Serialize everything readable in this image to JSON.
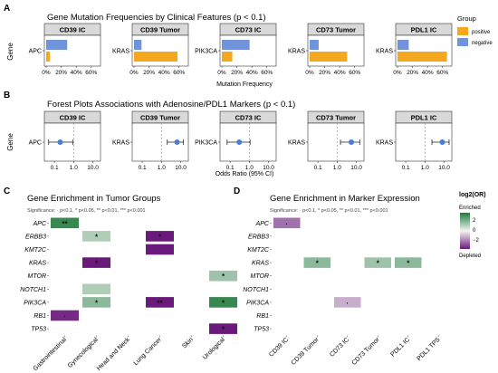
{
  "panels": {
    "a": {
      "letter": "A",
      "title": "Gene Mutation Frequencies by Clinical Features (p < 0.1)",
      "ylabel": "Gene",
      "xlabel": "Mutation Frequency",
      "legend": {
        "title": "Group",
        "items": [
          {
            "label": "positive",
            "color": "#f5a71d"
          },
          {
            "label": "negative",
            "color": "#6f94dc"
          }
        ]
      }
    },
    "b": {
      "letter": "B",
      "title": "Forest Plots Associations with Adenosine/PDL1 Markers (p < 0.1)",
      "ylabel": "Gene",
      "xlabel": "Odds Ratio (95% CI)"
    },
    "c": {
      "letter": "C",
      "title": "Gene Enrichment in Tumor Groups",
      "subtitle": "Significance: · p<0.1, * p<0.05, ** p<0.01, *** p<0.001"
    },
    "d": {
      "letter": "D",
      "title": "Gene Enrichment in Marker Expression",
      "subtitle": "Significance: · p<0.1, * p<0.05, ** p<0.01, *** p<0.001",
      "legend": {
        "title": "log2(OR)",
        "top_label": "Enriched",
        "bottom_label": "Depleted",
        "ticks": [
          "2",
          "0",
          "−2"
        ]
      }
    }
  },
  "chart_data": [
    {
      "type": "bar",
      "title": "Gene Mutation Frequencies by Clinical Features (p < 0.1)",
      "xlabel": "Mutation Frequency",
      "ylabel": "Gene",
      "x_ticks": [
        "0%",
        "20%",
        "40%",
        "60%"
      ],
      "xlim": [
        0,
        0.7
      ],
      "legend_position": "right",
      "colors": {
        "positive": "#f5a71d",
        "negative": "#6f94dc"
      },
      "facets": [
        {
          "name": "CD39 IC",
          "gene": "APC",
          "positive": 0.05,
          "negative": 0.28
        },
        {
          "name": "CD39 Tumor",
          "gene": "KRAS",
          "positive": 0.58,
          "negative": 0.1
        },
        {
          "name": "CD73 IC",
          "gene": "PIK3CA",
          "positive": 0.14,
          "negative": 0.37
        },
        {
          "name": "CD73 Tumor",
          "gene": "KRAS",
          "positive": 0.5,
          "negative": 0.12
        },
        {
          "name": "PDL1 IC",
          "gene": "KRAS",
          "positive": 0.66,
          "negative": 0.15
        }
      ]
    },
    {
      "type": "scatter",
      "title": "Forest Plots Associations with Adenosine/PDL1 Markers (p < 0.1)",
      "xlabel": "Odds Ratio (95% CI)",
      "ylabel": "Gene",
      "x_scale": "log",
      "x_ticks": [
        "0.1",
        "1.0",
        "10.0"
      ],
      "xlim": [
        0.03,
        25
      ],
      "reference_line": 1.0,
      "point_color": "#4a7cd8",
      "facets": [
        {
          "name": "CD39 IC",
          "gene": "APC",
          "or": 0.2,
          "lo": 0.05,
          "hi": 0.9
        },
        {
          "name": "CD39 Tumor",
          "gene": "KRAS",
          "or": 6.5,
          "lo": 2.0,
          "hi": 14.0
        },
        {
          "name": "CD73 IC",
          "gene": "PIK3CA",
          "or": 0.3,
          "lo": 0.07,
          "hi": 1.1
        },
        {
          "name": "CD73 Tumor",
          "gene": "KRAS",
          "or": 5.5,
          "lo": 1.5,
          "hi": 15.0
        },
        {
          "name": "PDL1 IC",
          "gene": "KRAS",
          "or": 8.0,
          "lo": 2.3,
          "hi": 18.0
        }
      ]
    },
    {
      "type": "heatmap",
      "title": "Gene Enrichment in Tumor Groups",
      "subtitle": "Significance: · p<0.1, * p<0.05, ** p<0.01, *** p<0.001",
      "rows": [
        "APC",
        "ERBB3",
        "KMT2C",
        "KRAS",
        "MTOR",
        "NOTCH1",
        "PIK3CA",
        "RB1",
        "TP53"
      ],
      "columns": [
        "Gastrointestinal",
        "Gynecological",
        "Head and Neck",
        "Lung Cancer",
        "Skin",
        "Urological"
      ],
      "cells": [
        {
          "row": "APC",
          "col": "Gastrointestinal",
          "value": 2.2,
          "sig": "**"
        },
        {
          "row": "ERBB3",
          "col": "Gynecological",
          "value": 0.8,
          "sig": "*"
        },
        {
          "row": "ERBB3",
          "col": "Lung Cancer",
          "value": -2.5,
          "sig": "*"
        },
        {
          "row": "KMT2C",
          "col": "Lung Cancer",
          "value": -2.5,
          "sig": ""
        },
        {
          "row": "KRAS",
          "col": "Gynecological",
          "value": -2.5,
          "sig": "*"
        },
        {
          "row": "MTOR",
          "col": "Urological",
          "value": 1.0,
          "sig": "*"
        },
        {
          "row": "NOTCH1",
          "col": "Gynecological",
          "value": 0.8,
          "sig": ""
        },
        {
          "row": "PIK3CA",
          "col": "Gynecological",
          "value": 1.2,
          "sig": "*"
        },
        {
          "row": "PIK3CA",
          "col": "Lung Cancer",
          "value": -2.5,
          "sig": "**"
        },
        {
          "row": "PIK3CA",
          "col": "Urological",
          "value": 2.2,
          "sig": "*"
        },
        {
          "row": "RB1",
          "col": "Gastrointestinal",
          "value": -2.3,
          "sig": "·"
        },
        {
          "row": "TP53",
          "col": "Urological",
          "value": -2.5,
          "sig": "*"
        }
      ]
    },
    {
      "type": "heatmap",
      "title": "Gene Enrichment in Marker Expression",
      "subtitle": "Significance: · p<0.1, * p<0.05, ** p<0.01, *** p<0.001",
      "rows": [
        "APC",
        "ERBB3",
        "KMT2C",
        "KRAS",
        "MTOR",
        "NOTCH1",
        "PIK3CA",
        "RB1",
        "TP53"
      ],
      "columns": [
        "CD39 IC",
        "CD39 Tumor",
        "CD73 IC",
        "CD73 Tumor",
        "PDL1 IC",
        "PDL1 TPS"
      ],
      "legend_position": "right",
      "legend_ticks": [
        2,
        0,
        -2
      ],
      "cells": [
        {
          "row": "APC",
          "col": "CD39 IC",
          "value": -1.5,
          "sig": "·"
        },
        {
          "row": "KRAS",
          "col": "CD39 Tumor",
          "value": 1.2,
          "sig": "*"
        },
        {
          "row": "KRAS",
          "col": "CD73 Tumor",
          "value": 1.0,
          "sig": "*"
        },
        {
          "row": "KRAS",
          "col": "PDL1 IC",
          "value": 1.2,
          "sig": "*"
        },
        {
          "row": "PIK3CA",
          "col": "CD73 IC",
          "value": -0.8,
          "sig": "·"
        }
      ]
    }
  ]
}
